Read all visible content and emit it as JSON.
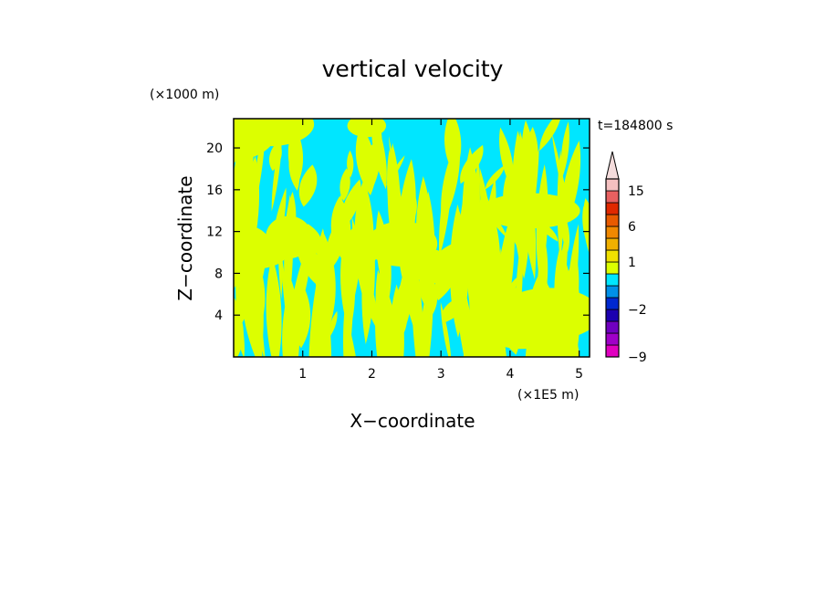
{
  "chart_data": {
    "type": "heatmap",
    "title": "vertical velocity",
    "xlabel": "X−coordinate",
    "ylabel": "Z−coordinate",
    "x_unit": "(×1E5 m)",
    "y_unit": "(×1000 m)",
    "time_label": "t=184800 s",
    "xlim": [
      0,
      5.15
    ],
    "ylim": [
      0,
      22.8
    ],
    "x_ticks": [
      1,
      2,
      3,
      4,
      5
    ],
    "y_ticks": [
      4,
      8,
      12,
      16,
      20
    ],
    "x_tick_labels": [
      "1",
      "2",
      "3",
      "4",
      "5"
    ],
    "y_tick_labels": [
      "4",
      "8",
      "12",
      "16",
      "20"
    ],
    "fill_colors": {
      "positive": "#dcff00",
      "negative": "#00e6ff"
    },
    "colorbar": {
      "levels": [
        -9,
        -6,
        -4,
        -3,
        -2,
        -1,
        0,
        0.5,
        1,
        2,
        4,
        6,
        8,
        10,
        15,
        20
      ],
      "colors": [
        "#e000c0",
        "#a000c8",
        "#7000c0",
        "#1c00b0",
        "#0028d0",
        "#0090e8",
        "#00e6ff",
        "#dcff00",
        "#f0e000",
        "#f0b000",
        "#f08800",
        "#e85a00",
        "#e02800",
        "#e86060",
        "#f4c0c0"
      ],
      "over_color": "#f4dcdc",
      "tick_labels": [
        {
          "value": -9,
          "label": "−9"
        },
        {
          "value": -2,
          "label": "−2"
        },
        {
          "value": 1,
          "label": "1"
        },
        {
          "value": 6,
          "label": "6"
        },
        {
          "value": 15,
          "label": "15"
        }
      ]
    }
  }
}
